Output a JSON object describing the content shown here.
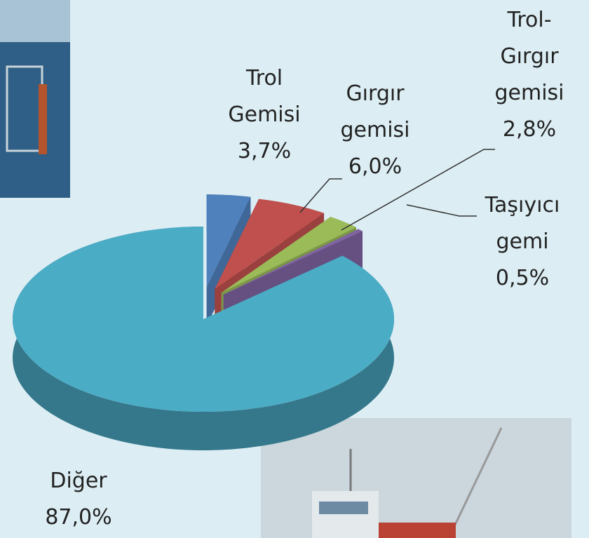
{
  "chart_data": {
    "type": "pie",
    "categories": [
      "Trol Gemisi",
      "Gırgır gemisi",
      "Trol-Gırgır gemisi",
      "Taşıyıcı gemi",
      "Diğer"
    ],
    "values": [
      3.7,
      6.0,
      2.8,
      0.5,
      87.0
    ],
    "value_labels": [
      "3,7%",
      "6,0%",
      "2,8%",
      "0,5%",
      "87,0%"
    ],
    "colors": [
      "#4f81bd",
      "#c0504d",
      "#9bbb59",
      "#8064a2",
      "#4bacc6"
    ]
  }
}
